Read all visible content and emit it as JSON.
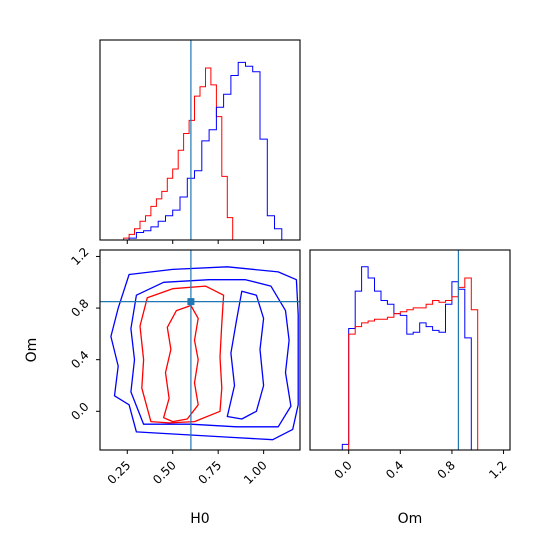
{
  "chart_data": {
    "type": "corner",
    "parameters": [
      "H0",
      "Om"
    ],
    "truths": {
      "H0": 0.6,
      "Om": 0.85
    },
    "colors": {
      "red": "#ff0000",
      "blue": "#0000ff",
      "truth": "#1f77b4"
    },
    "panels": [
      {
        "id": "H0-marginal",
        "type": "step-histogram",
        "xlim": [
          0.1,
          1.2
        ],
        "ylim": [
          0,
          1.07
        ],
        "yticks": "none",
        "series": [
          {
            "color": "red",
            "bin_edges": [
              0.23,
              0.26,
              0.29,
              0.32,
              0.35,
              0.38,
              0.41,
              0.44,
              0.47,
              0.5,
              0.53,
              0.56,
              0.59,
              0.62,
              0.65,
              0.68,
              0.71,
              0.74,
              0.77,
              0.8,
              0.83,
              0.86
            ],
            "heights": [
              0.01,
              0.03,
              0.06,
              0.1,
              0.13,
              0.18,
              0.22,
              0.26,
              0.33,
              0.38,
              0.48,
              0.57,
              0.64,
              0.77,
              0.82,
              0.92,
              0.83,
              0.66,
              0.34,
              0.12,
              0.0
            ]
          },
          {
            "color": "blue",
            "bin_edges": [
              0.26,
              0.3,
              0.34,
              0.38,
              0.42,
              0.46,
              0.5,
              0.54,
              0.58,
              0.62,
              0.66,
              0.7,
              0.74,
              0.78,
              0.82,
              0.86,
              0.9,
              0.94,
              0.98,
              1.02,
              1.06,
              1.1
            ],
            "heights": [
              0.01,
              0.04,
              0.05,
              0.07,
              0.1,
              0.13,
              0.16,
              0.23,
              0.33,
              0.37,
              0.53,
              0.59,
              0.71,
              0.78,
              0.88,
              0.95,
              0.93,
              0.9,
              0.54,
              0.13,
              0.06
            ]
          }
        ],
        "truth": 0.6
      },
      {
        "id": "H0-Om-joint",
        "type": "contour",
        "xlim": [
          0.1,
          1.2
        ],
        "ylim": [
          -0.3,
          1.25
        ],
        "yticks": [
          0.0,
          0.4,
          0.8,
          1.2
        ],
        "truth_point": [
          0.6,
          0.85
        ],
        "contours": [
          {
            "color": "red",
            "level": "inner",
            "points": [
              [
                0.45,
                -0.05
              ],
              [
                0.48,
                0.1
              ],
              [
                0.46,
                0.3
              ],
              [
                0.49,
                0.48
              ],
              [
                0.47,
                0.65
              ],
              [
                0.52,
                0.78
              ],
              [
                0.6,
                0.82
              ],
              [
                0.64,
                0.72
              ],
              [
                0.62,
                0.55
              ],
              [
                0.64,
                0.4
              ],
              [
                0.62,
                0.22
              ],
              [
                0.64,
                0.05
              ],
              [
                0.58,
                -0.06
              ],
              [
                0.5,
                -0.08
              ]
            ]
          },
          {
            "color": "red",
            "level": "outer",
            "points": [
              [
                0.38,
                -0.08
              ],
              [
                0.33,
                0.18
              ],
              [
                0.34,
                0.4
              ],
              [
                0.32,
                0.66
              ],
              [
                0.36,
                0.88
              ],
              [
                0.5,
                0.95
              ],
              [
                0.68,
                0.97
              ],
              [
                0.78,
                0.9
              ],
              [
                0.77,
                0.68
              ],
              [
                0.76,
                0.42
              ],
              [
                0.77,
                0.18
              ],
              [
                0.76,
                0.0
              ],
              [
                0.62,
                -0.08
              ],
              [
                0.48,
                -0.09
              ]
            ]
          },
          {
            "color": "blue",
            "level": "inner",
            "points": [
              [
                0.8,
                -0.04
              ],
              [
                0.84,
                0.2
              ],
              [
                0.82,
                0.45
              ],
              [
                0.85,
                0.7
              ],
              [
                0.88,
                0.93
              ],
              [
                0.96,
                0.9
              ],
              [
                1.0,
                0.72
              ],
              [
                0.98,
                0.48
              ],
              [
                1.0,
                0.2
              ],
              [
                0.96,
                0.0
              ],
              [
                0.88,
                -0.06
              ]
            ]
          },
          {
            "color": "blue",
            "level": "outer",
            "points": [
              [
                0.34,
                -0.1
              ],
              [
                0.27,
                0.15
              ],
              [
                0.29,
                0.4
              ],
              [
                0.27,
                0.64
              ],
              [
                0.3,
                0.9
              ],
              [
                0.45,
                1.0
              ],
              [
                0.7,
                1.02
              ],
              [
                0.9,
                1.02
              ],
              [
                1.04,
                0.97
              ],
              [
                1.12,
                0.78
              ],
              [
                1.14,
                0.55
              ],
              [
                1.12,
                0.3
              ],
              [
                1.15,
                0.04
              ],
              [
                1.08,
                -0.12
              ],
              [
                0.85,
                -0.12
              ],
              [
                0.6,
                -0.1
              ]
            ]
          },
          {
            "color": "blue",
            "level": "outermost",
            "points": [
              [
                0.3,
                -0.16
              ],
              [
                0.26,
                0.05
              ],
              [
                0.18,
                0.12
              ],
              [
                0.2,
                0.35
              ],
              [
                0.16,
                0.58
              ],
              [
                0.2,
                0.8
              ],
              [
                0.26,
                1.06
              ],
              [
                0.5,
                1.1
              ],
              [
                0.8,
                1.12
              ],
              [
                1.08,
                1.08
              ],
              [
                1.18,
                1.02
              ],
              [
                1.19,
                0.75
              ],
              [
                1.19,
                0.4
              ],
              [
                1.19,
                0.05
              ],
              [
                1.16,
                -0.14
              ],
              [
                1.05,
                -0.22
              ],
              [
                0.8,
                -0.2
              ],
              [
                0.55,
                -0.18
              ]
            ]
          }
        ]
      },
      {
        "id": "Om-marginal",
        "type": "step-histogram",
        "xlim": [
          -0.3,
          1.25
        ],
        "ylim": [
          0,
          1.07
        ],
        "yticks": "none",
        "series": [
          {
            "color": "blue",
            "bin_edges": [
              -0.05,
              0.0,
              0.05,
              0.1,
              0.15,
              0.2,
              0.25,
              0.3,
              0.35,
              0.4,
              0.45,
              0.5,
              0.55,
              0.6,
              0.65,
              0.7,
              0.75,
              0.8,
              0.85,
              0.9,
              0.95,
              1.0
            ],
            "heights": [
              0.03,
              0.65,
              0.85,
              0.98,
              0.92,
              0.85,
              0.8,
              0.78,
              0.73,
              0.72,
              0.62,
              0.63,
              0.68,
              0.66,
              0.64,
              0.63,
              0.78,
              0.9,
              0.86,
              0.6,
              0.0
            ]
          },
          {
            "color": "red",
            "bin_edges": [
              0.0,
              0.05,
              0.1,
              0.15,
              0.2,
              0.25,
              0.3,
              0.35,
              0.4,
              0.45,
              0.5,
              0.55,
              0.6,
              0.65,
              0.7,
              0.75,
              0.8,
              0.85,
              0.9,
              0.95,
              1.0
            ],
            "heights": [
              0.62,
              0.66,
              0.68,
              0.69,
              0.7,
              0.7,
              0.71,
              0.73,
              0.74,
              0.75,
              0.76,
              0.76,
              0.78,
              0.8,
              0.79,
              0.8,
              0.82,
              0.87,
              0.92,
              0.75
            ]
          }
        ],
        "truth": 0.85
      }
    ],
    "axes": {
      "H0": {
        "label": "H0",
        "ticks": [
          0.25,
          0.5,
          0.75,
          1.0
        ],
        "tick_labels": [
          "0.25",
          "0.50",
          "0.75",
          "1.00"
        ]
      },
      "Om": {
        "label": "Om",
        "ticks": [
          0.0,
          0.4,
          0.8,
          1.2
        ],
        "tick_labels": [
          "0.0",
          "0.4",
          "0.8",
          "1.2"
        ]
      }
    }
  }
}
